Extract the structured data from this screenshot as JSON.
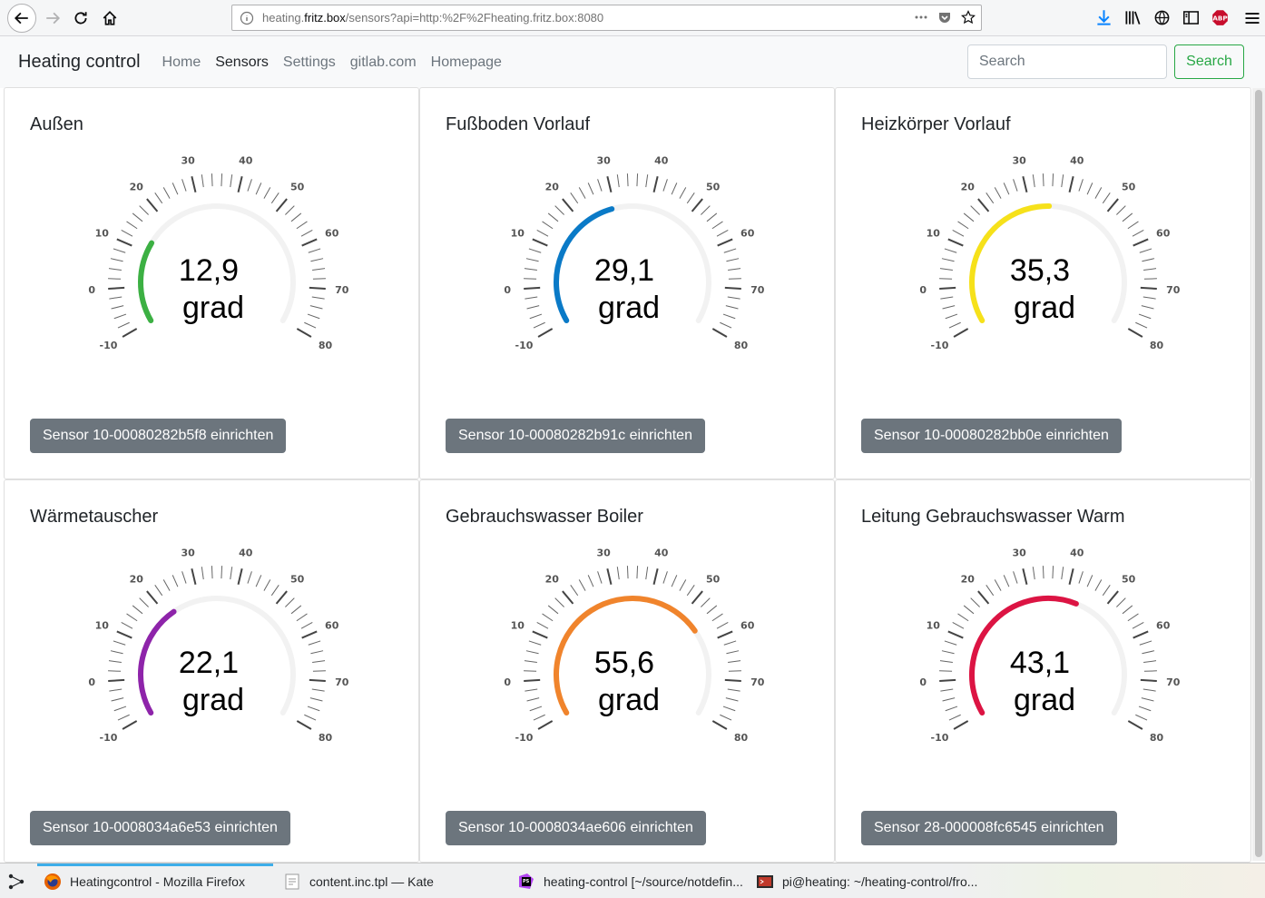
{
  "browser": {
    "url_prefix": "heating.",
    "url_host": "fritz.box",
    "url_rest": "/sensors?api=http:%2F%2Fheating.fritz.box:8080"
  },
  "navbar": {
    "brand": "Heating control",
    "links": [
      "Home",
      "Sensors",
      "Settings",
      "gitlab.com",
      "Homepage"
    ],
    "active_link": "Sensors",
    "search_placeholder": "Search",
    "search_button": "Search"
  },
  "gauge_scale": {
    "min": -10,
    "max": 80,
    "labels": [
      "-10",
      "0",
      "10",
      "20",
      "30",
      "40",
      "50",
      "60",
      "70",
      "80"
    ]
  },
  "sensors": [
    {
      "title": "Außen",
      "value": "12,9",
      "numeric": 12.9,
      "unit": "grad",
      "color": "#3cb043",
      "button": "Sensor 10-00080282b5f8 einrichten"
    },
    {
      "title": "Fußboden Vorlauf",
      "value": "29,1",
      "numeric": 29.1,
      "unit": "grad",
      "color": "#0a7ac7",
      "button": "Sensor 10-00080282b91c einrichten"
    },
    {
      "title": "Heizkörper Vorlauf",
      "value": "35,3",
      "numeric": 35.3,
      "unit": "grad",
      "color": "#f6e11a",
      "button": "Sensor 10-00080282bb0e einrichten"
    },
    {
      "title": "Wärmetauscher",
      "value": "22,1",
      "numeric": 22.1,
      "unit": "grad",
      "color": "#8e24aa",
      "button": "Sensor 10-0008034a6e53 einrichten"
    },
    {
      "title": "Gebrauchswasser Boiler",
      "value": "55,6",
      "numeric": 55.6,
      "unit": "grad",
      "color": "#f0842c",
      "button": "Sensor 10-0008034ae606 einrichten"
    },
    {
      "title": "Leitung Gebrauchswasser Warm",
      "value": "43,1",
      "numeric": 43.1,
      "unit": "grad",
      "color": "#dc1443",
      "button": "Sensor 28-000008fc6545 einrichten"
    }
  ],
  "taskbar": {
    "tasks": [
      {
        "label": "Heatingcontrol - Mozilla Firefox",
        "icon": "firefox-icon"
      },
      {
        "label": "content.inc.tpl  — Kate",
        "icon": "kate-icon"
      },
      {
        "label": "heating-control [~/source/notdefin...",
        "icon": "phpstorm-icon"
      },
      {
        "label": "pi@heating: ~/heating-control/fro...",
        "icon": "terminal-icon"
      }
    ]
  },
  "icons": {
    "back": "back-arrow-icon",
    "forward": "forward-arrow-icon",
    "reload": "reload-icon",
    "home": "home-icon",
    "info": "info-icon",
    "more": "more-dots-icon",
    "pocket": "pocket-icon",
    "bookmark": "star-icon",
    "download": "download-icon",
    "library": "library-icon",
    "sidebar": "sidebar-icon",
    "adblock": "abp-icon",
    "menu": "hamburger-menu-icon"
  }
}
